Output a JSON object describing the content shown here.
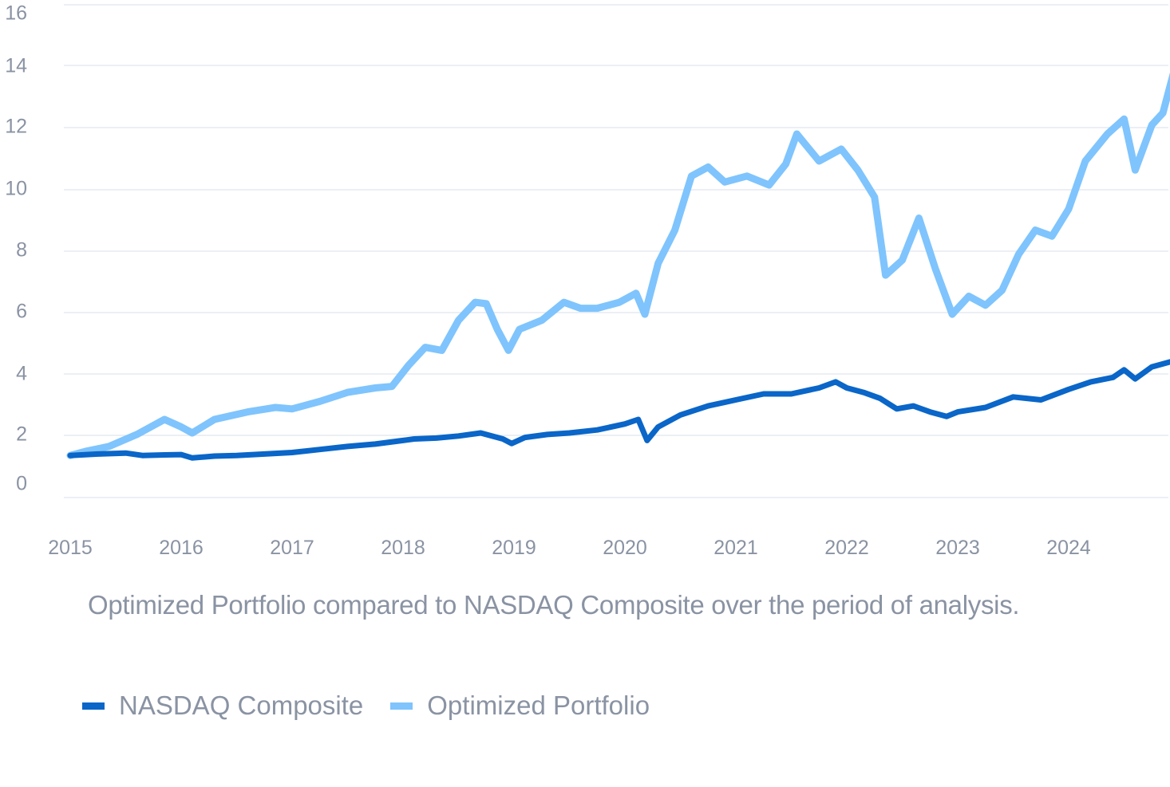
{
  "chart_data": {
    "type": "line",
    "caption": "Optimized Portfolio compared to NASDAQ Composite over the period of analysis.",
    "x_ticks": [
      "2015",
      "2016",
      "2017",
      "2018",
      "2019",
      "2020",
      "2021",
      "2022",
      "2023",
      "2024"
    ],
    "y_ticks": [
      "16",
      "14",
      "12",
      "10",
      "8",
      "6",
      "4",
      "2",
      "0"
    ],
    "xlim": [
      2015.0,
      2024.95
    ],
    "ylim": [
      -0.4,
      16.0
    ],
    "grid": true,
    "legend_position": "bottom-left",
    "series": [
      {
        "name": "NASDAQ Composite",
        "color": "#0a66c8",
        "points": [
          [
            2015.0,
            1.0
          ],
          [
            2015.25,
            1.05
          ],
          [
            2015.5,
            1.08
          ],
          [
            2015.65,
            1.0
          ],
          [
            2015.85,
            1.02
          ],
          [
            2016.0,
            1.03
          ],
          [
            2016.1,
            0.92
          ],
          [
            2016.3,
            0.98
          ],
          [
            2016.5,
            1.0
          ],
          [
            2016.75,
            1.05
          ],
          [
            2017.0,
            1.1
          ],
          [
            2017.25,
            1.2
          ],
          [
            2017.5,
            1.3
          ],
          [
            2017.75,
            1.38
          ],
          [
            2018.0,
            1.5
          ],
          [
            2018.1,
            1.55
          ],
          [
            2018.3,
            1.58
          ],
          [
            2018.5,
            1.65
          ],
          [
            2018.7,
            1.75
          ],
          [
            2018.9,
            1.55
          ],
          [
            2018.98,
            1.4
          ],
          [
            2019.1,
            1.6
          ],
          [
            2019.3,
            1.7
          ],
          [
            2019.5,
            1.75
          ],
          [
            2019.75,
            1.85
          ],
          [
            2020.0,
            2.05
          ],
          [
            2020.12,
            2.2
          ],
          [
            2020.2,
            1.5
          ],
          [
            2020.3,
            1.95
          ],
          [
            2020.5,
            2.35
          ],
          [
            2020.75,
            2.65
          ],
          [
            2021.0,
            2.85
          ],
          [
            2021.25,
            3.05
          ],
          [
            2021.5,
            3.05
          ],
          [
            2021.75,
            3.25
          ],
          [
            2021.9,
            3.45
          ],
          [
            2022.0,
            3.25
          ],
          [
            2022.15,
            3.1
          ],
          [
            2022.3,
            2.9
          ],
          [
            2022.45,
            2.55
          ],
          [
            2022.6,
            2.65
          ],
          [
            2022.75,
            2.45
          ],
          [
            2022.9,
            2.3
          ],
          [
            2023.0,
            2.45
          ],
          [
            2023.25,
            2.6
          ],
          [
            2023.5,
            2.95
          ],
          [
            2023.75,
            2.85
          ],
          [
            2024.0,
            3.2
          ],
          [
            2024.2,
            3.45
          ],
          [
            2024.4,
            3.6
          ],
          [
            2024.5,
            3.85
          ],
          [
            2024.6,
            3.55
          ],
          [
            2024.75,
            3.95
          ],
          [
            2024.95,
            4.15
          ]
        ]
      },
      {
        "name": "Optimized Portfolio",
        "color": "#7fc4fd",
        "points": [
          [
            2015.0,
            1.0
          ],
          [
            2015.15,
            1.15
          ],
          [
            2015.35,
            1.3
          ],
          [
            2015.6,
            1.7
          ],
          [
            2015.85,
            2.2
          ],
          [
            2016.0,
            1.95
          ],
          [
            2016.1,
            1.75
          ],
          [
            2016.3,
            2.2
          ],
          [
            2016.6,
            2.45
          ],
          [
            2016.85,
            2.6
          ],
          [
            2017.0,
            2.55
          ],
          [
            2017.25,
            2.8
          ],
          [
            2017.5,
            3.1
          ],
          [
            2017.75,
            3.25
          ],
          [
            2017.9,
            3.3
          ],
          [
            2018.05,
            4.0
          ],
          [
            2018.2,
            4.6
          ],
          [
            2018.35,
            4.5
          ],
          [
            2018.5,
            5.5
          ],
          [
            2018.65,
            6.1
          ],
          [
            2018.75,
            6.05
          ],
          [
            2018.85,
            5.2
          ],
          [
            2018.95,
            4.5
          ],
          [
            2019.05,
            5.2
          ],
          [
            2019.25,
            5.5
          ],
          [
            2019.45,
            6.1
          ],
          [
            2019.6,
            5.9
          ],
          [
            2019.75,
            5.9
          ],
          [
            2019.95,
            6.1
          ],
          [
            2020.1,
            6.4
          ],
          [
            2020.18,
            5.7
          ],
          [
            2020.3,
            7.4
          ],
          [
            2020.45,
            8.5
          ],
          [
            2020.6,
            10.3
          ],
          [
            2020.75,
            10.6
          ],
          [
            2020.9,
            10.1
          ],
          [
            2021.1,
            10.3
          ],
          [
            2021.3,
            10.0
          ],
          [
            2021.45,
            10.7
          ],
          [
            2021.55,
            11.7
          ],
          [
            2021.75,
            10.8
          ],
          [
            2021.95,
            11.2
          ],
          [
            2022.1,
            10.5
          ],
          [
            2022.25,
            9.6
          ],
          [
            2022.35,
            7.0
          ],
          [
            2022.5,
            7.5
          ],
          [
            2022.65,
            8.9
          ],
          [
            2022.8,
            7.2
          ],
          [
            2022.95,
            5.7
          ],
          [
            2023.1,
            6.3
          ],
          [
            2023.25,
            6.0
          ],
          [
            2023.4,
            6.5
          ],
          [
            2023.55,
            7.7
          ],
          [
            2023.7,
            8.5
          ],
          [
            2023.85,
            8.3
          ],
          [
            2024.0,
            9.2
          ],
          [
            2024.15,
            10.8
          ],
          [
            2024.35,
            11.7
          ],
          [
            2024.5,
            12.2
          ],
          [
            2024.6,
            10.5
          ],
          [
            2024.75,
            12.0
          ],
          [
            2024.85,
            12.4
          ],
          [
            2024.95,
            13.8
          ]
        ]
      }
    ]
  }
}
